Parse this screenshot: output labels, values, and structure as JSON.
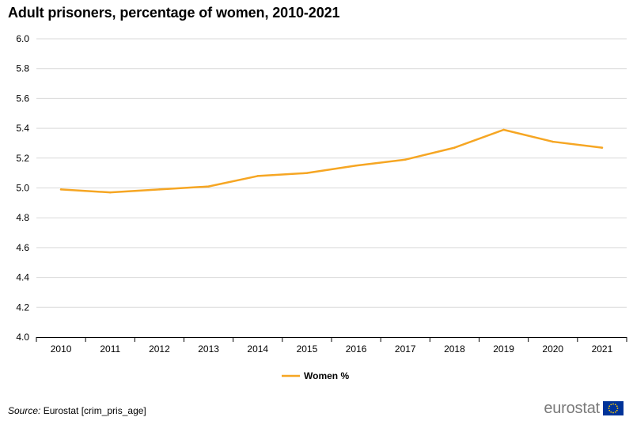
{
  "chart_data": {
    "type": "line",
    "title": "Adult prisoners, percentage of women, 2010-2021",
    "categories": [
      "2010",
      "2011",
      "2012",
      "2013",
      "2014",
      "2015",
      "2016",
      "2017",
      "2018",
      "2019",
      "2020",
      "2021"
    ],
    "series": [
      {
        "name": "Women %",
        "color": "#F6A623",
        "values": [
          4.99,
          4.97,
          4.99,
          5.01,
          5.08,
          5.1,
          5.15,
          5.19,
          5.27,
          5.39,
          5.31,
          5.27
        ]
      }
    ],
    "ylim": [
      4.0,
      6.0
    ],
    "yticks": [
      "4.0",
      "4.2",
      "4.4",
      "4.6",
      "4.8",
      "5.0",
      "5.2",
      "5.4",
      "5.6",
      "5.8",
      "6.0"
    ],
    "grid": true,
    "legend_position": "bottom-center"
  },
  "source": {
    "label": "Source:",
    "text": " Eurostat [crim_pris_age]"
  },
  "logo": {
    "text": "eurostat"
  }
}
